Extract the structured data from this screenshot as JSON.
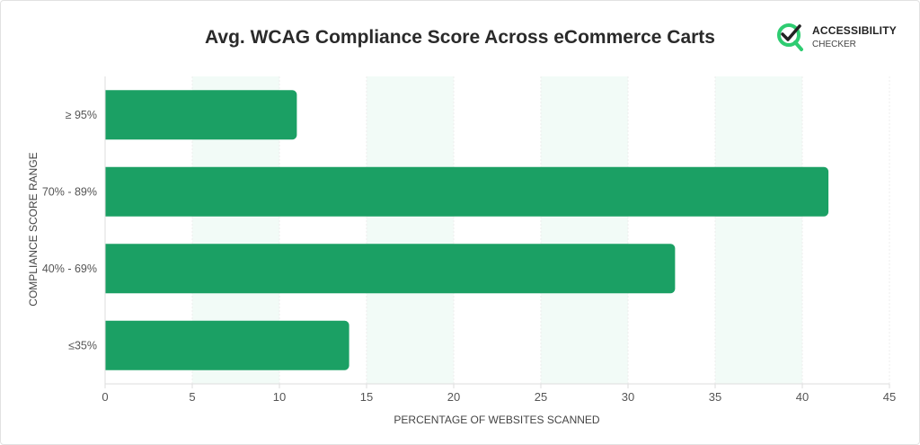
{
  "chart_data": {
    "type": "bar",
    "orientation": "horizontal",
    "title": "Avg. WCAG Compliance Score Across eCommerce Carts",
    "xlabel": "PERCENTAGE OF WEBSITES SCANNED",
    "ylabel": "COMPLIANCE SCORE RANGE",
    "categories": [
      "≥ 95%",
      "70% - 89%",
      "40% - 69%",
      "≤35%"
    ],
    "values": [
      11.0,
      41.5,
      32.7,
      14.0
    ],
    "xlim": [
      0,
      45
    ],
    "xticks": [
      "0",
      "5",
      "10",
      "15",
      "20",
      "25",
      "30",
      "35",
      "40",
      "45"
    ],
    "grid": "alternating shaded vertical bands",
    "bar_color": "#1ba064",
    "band_color": "#f2fbf7"
  },
  "logo": {
    "line1": "ACCESSIBILITY",
    "line2": "CHECKER",
    "color": "#2ecc71"
  }
}
